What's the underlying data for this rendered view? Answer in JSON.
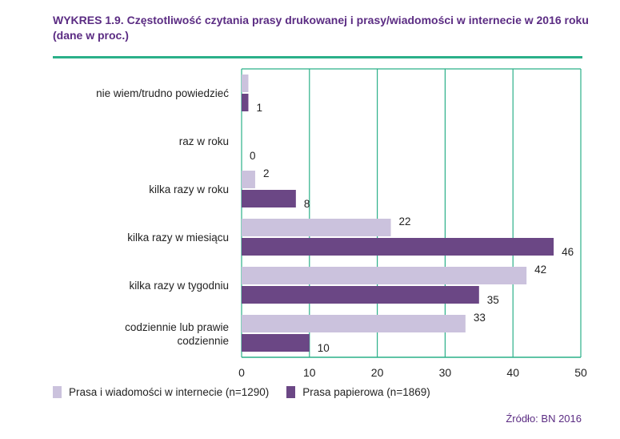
{
  "title": "WYKRES 1.9. Częstotliwość czytania prasy drukowanej i prasy/wiadomości w internecie w 2016 roku (dane w proc.)",
  "source": "Źródło: BN 2016",
  "colors": {
    "internet": "#cbc2dd",
    "paper": "#6b4785",
    "grid": "#2bb089",
    "accent": "#5b2c83"
  },
  "chart_data": {
    "type": "bar",
    "orientation": "horizontal",
    "categories": [
      "nie wiem/trudno powiedzieć",
      "raz w roku",
      "kilka razy w roku",
      "kilka razy w miesiącu",
      "kilka razy w tygodniu",
      "codziennie lub prawie codziennie"
    ],
    "series": [
      {
        "name": "Prasa i wiadomości w internecie (n=1290)",
        "values": [
          1,
          null,
          2,
          22,
          42,
          33
        ]
      },
      {
        "name": "Prasa papierowa (n=1869)",
        "values": [
          1,
          0,
          8,
          46,
          35,
          10
        ]
      }
    ],
    "data_labels": [
      [
        "",
        "",
        "2",
        "22",
        "42",
        "33"
      ],
      [
        "1",
        "0",
        "8",
        "46",
        "35",
        "10"
      ]
    ],
    "xlim": [
      0,
      50
    ],
    "xticks": [
      0,
      10,
      20,
      30,
      40,
      50
    ],
    "grid": true,
    "legend_position": "bottom"
  }
}
